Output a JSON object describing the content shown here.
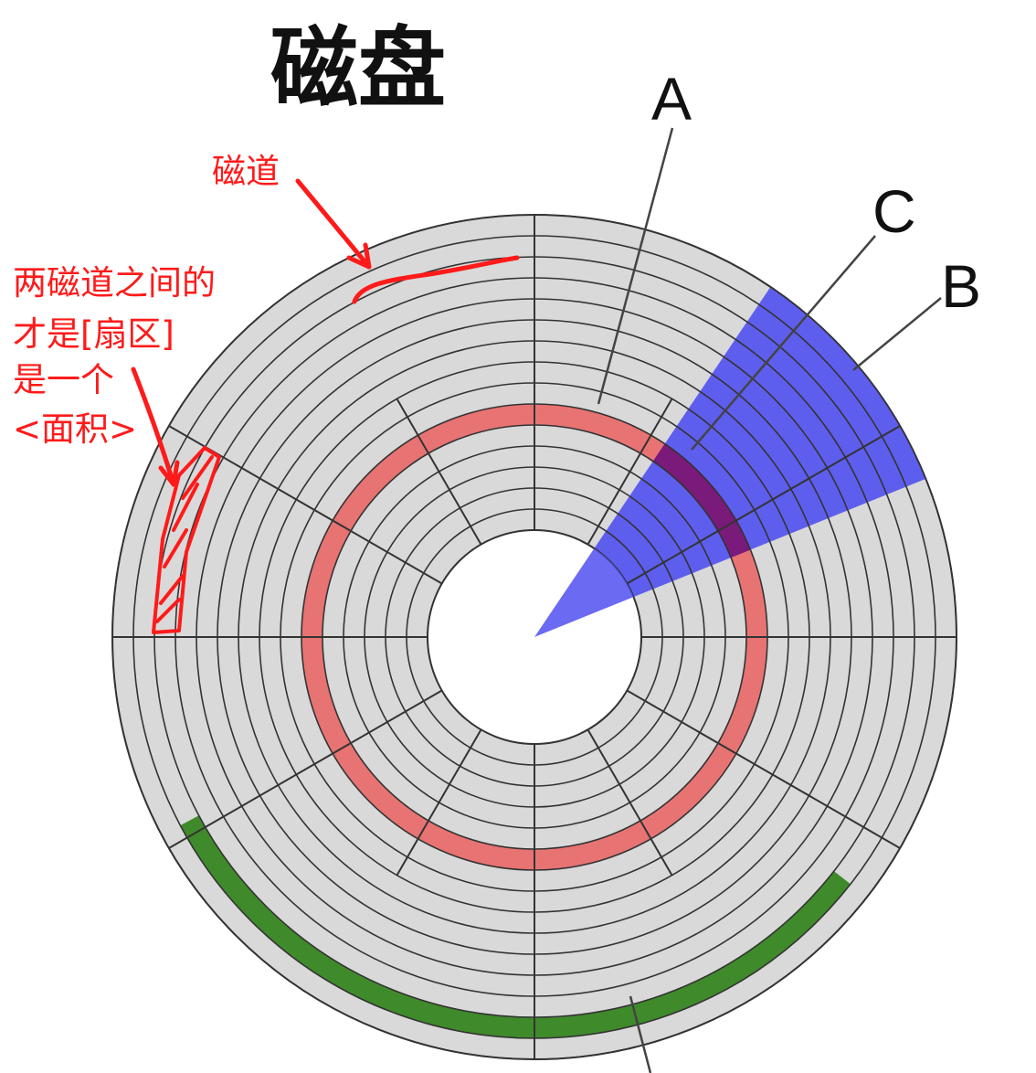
{
  "title": "磁盘",
  "labels": {
    "a": "A",
    "b": "B",
    "c": "C"
  },
  "annotations": {
    "track": "磁道",
    "sector_note": [
      "两磁道之间的",
      "才是[扇区]",
      "是一个",
      "<面积>"
    ]
  },
  "colors": {
    "platter": "#d9d9d9",
    "grid": "#333333",
    "track_a": "#e87373",
    "sector_b": "#5050f0",
    "block_c": "#7a1a7a",
    "cluster_d": "#3f8a2a",
    "annotation": "#ff1a1a"
  }
}
